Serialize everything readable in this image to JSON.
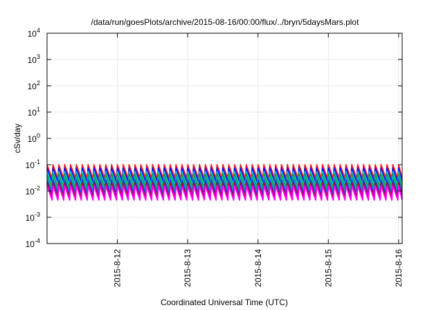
{
  "chart_data": {
    "type": "line",
    "title": "/data/run/goesPlots/archive/2015-08-16/00:00/flux/../bryn/5daysMars.plot",
    "xlabel": "Coordinated Universal Time (UTC)",
    "ylabel": "cSv/day",
    "yscale": "log",
    "ylim": [
      0.0001,
      10000
    ],
    "y_ticks": [
      {
        "value": 0.0001,
        "base": "10",
        "exp": "-4"
      },
      {
        "value": 0.001,
        "base": "10",
        "exp": "-3"
      },
      {
        "value": 0.01,
        "base": "10",
        "exp": "-2"
      },
      {
        "value": 0.1,
        "base": "10",
        "exp": "-1"
      },
      {
        "value": 1,
        "base": "10",
        "exp": "0"
      },
      {
        "value": 10,
        "base": "10",
        "exp": "1"
      },
      {
        "value": 100,
        "base": "10",
        "exp": "2"
      },
      {
        "value": 1000,
        "base": "10",
        "exp": "3"
      },
      {
        "value": 10000,
        "base": "10",
        "exp": "4"
      }
    ],
    "xlim_days": [
      0,
      5.05
    ],
    "x_ticks": [
      {
        "day": 1,
        "label": "2015-8-12"
      },
      {
        "day": 2,
        "label": "2015-8-13"
      },
      {
        "day": 3,
        "label": "2015-8-14"
      },
      {
        "day": 4,
        "label": "2015-8-15"
      },
      {
        "day": 5,
        "label": "2015-8-16"
      }
    ],
    "grid": true,
    "sawtooth_period_hours": 2,
    "series": [
      {
        "color": "#ff00ff",
        "peak": 0.016,
        "trough": 0.0045
      },
      {
        "color": "#b0002a",
        "peak": 0.02,
        "trough": 0.0055
      },
      {
        "color": "#2a3acc",
        "peak": 0.026,
        "trough": 0.0075
      },
      {
        "color": "#00b3aa",
        "peak": 0.035,
        "trough": 0.01
      },
      {
        "color": "#2aa02a",
        "peak": 0.045,
        "trough": 0.013
      },
      {
        "color": "#00c8ff",
        "peak": 0.055,
        "trough": 0.016
      },
      {
        "color": "#1010ee",
        "peak": 0.075,
        "trough": 0.022
      },
      {
        "color": "#ff1a1a",
        "peak": 0.1,
        "trough": 0.03
      }
    ]
  }
}
